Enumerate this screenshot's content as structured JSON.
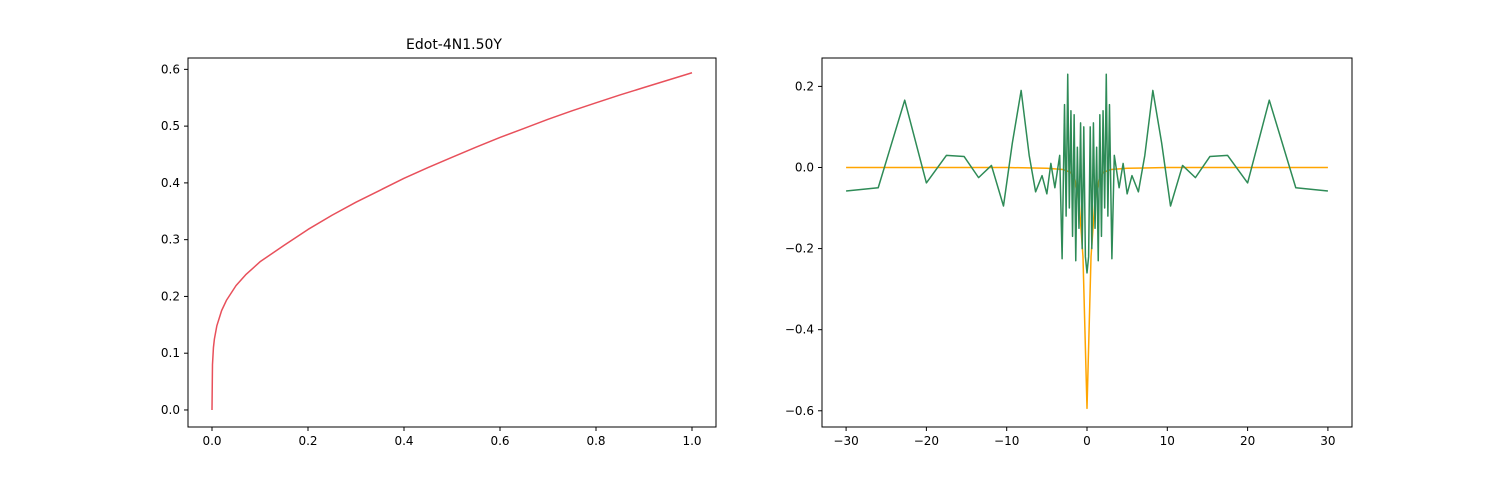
{
  "figure": {
    "background": "#ffffff"
  },
  "chart_data": [
    {
      "type": "line",
      "title": "Edot-4N1.50Y",
      "xlabel": "",
      "ylabel": "",
      "xlim": [
        -0.05,
        1.05
      ],
      "ylim": [
        -0.03,
        0.62
      ],
      "xticks": [
        0.0,
        0.2,
        0.4,
        0.6,
        0.8,
        1.0
      ],
      "xtick_labels": [
        "0.0",
        "0.2",
        "0.4",
        "0.6",
        "0.8",
        "1.0"
      ],
      "yticks": [
        0.0,
        0.1,
        0.2,
        0.3,
        0.4,
        0.5,
        0.6
      ],
      "ytick_labels": [
        "0.0",
        "0.1",
        "0.2",
        "0.3",
        "0.4",
        "0.5",
        "0.6"
      ],
      "grid": false,
      "series": [
        {
          "color": "#e8505b",
          "x": [
            0.0,
            0.001,
            0.003,
            0.005,
            0.01,
            0.02,
            0.03,
            0.05,
            0.07,
            0.1,
            0.15,
            0.2,
            0.25,
            0.3,
            0.35,
            0.4,
            0.45,
            0.5,
            0.55,
            0.6,
            0.65,
            0.7,
            0.75,
            0.8,
            0.85,
            0.9,
            0.95,
            1.0
          ],
          "y": [
            0.0,
            0.08,
            0.11,
            0.125,
            0.148,
            0.175,
            0.193,
            0.219,
            0.238,
            0.261,
            0.29,
            0.318,
            0.343,
            0.366,
            0.387,
            0.408,
            0.427,
            0.445,
            0.463,
            0.48,
            0.496,
            0.512,
            0.527,
            0.541,
            0.555,
            0.568,
            0.581,
            0.594
          ]
        }
      ]
    },
    {
      "type": "line",
      "title": "",
      "xlabel": "",
      "ylabel": "",
      "xlim": [
        -33,
        33
      ],
      "ylim": [
        -0.64,
        0.27
      ],
      "xticks": [
        -30,
        -20,
        -10,
        0,
        10,
        20,
        30
      ],
      "xtick_labels": [
        "−30",
        "−20",
        "−10",
        "0",
        "10",
        "20",
        "30"
      ],
      "yticks": [
        -0.6,
        -0.4,
        -0.2,
        0.0,
        0.2
      ],
      "ytick_labels": [
        "−0.6",
        "−0.4",
        "−0.2",
        "0.0",
        "0.2"
      ],
      "grid": false,
      "series": [
        {
          "color": "#ffa500",
          "x": [
            -30,
            -20,
            -10,
            -5,
            -3,
            -2,
            -1.5,
            -1,
            -0.5,
            0,
            0.5,
            1,
            1.5,
            2,
            3,
            5,
            10,
            20,
            30
          ],
          "y": [
            0.0,
            0.0,
            0.0,
            -0.002,
            -0.005,
            -0.012,
            -0.03,
            -0.08,
            -0.22,
            -0.594,
            -0.22,
            -0.08,
            -0.03,
            -0.012,
            -0.005,
            -0.002,
            0.0,
            0.0,
            0.0
          ]
        },
        {
          "color": "#2e8b57",
          "x": [
            -30,
            -26,
            -22.7,
            -20,
            -17.5,
            -15.3,
            -13.5,
            -11.9,
            -10.4,
            -9.3,
            -8.2,
            -7.2,
            -6.4,
            -5.6,
            -5.0,
            -4.5,
            -4.0,
            -3.7,
            -3.4,
            -3.1,
            -2.8,
            -2.6,
            -2.4,
            -2.2,
            -2.0,
            -1.8,
            -1.6,
            -1.4,
            -1.2,
            -1.0,
            -0.8,
            -0.6,
            -0.4,
            -0.2,
            0.0,
            0.2,
            0.4,
            0.6,
            0.8,
            1.0,
            1.2,
            1.4,
            1.6,
            1.8,
            2.0,
            2.2,
            2.4,
            2.6,
            2.8,
            3.1,
            3.4,
            3.7,
            4.0,
            4.5,
            5.0,
            5.6,
            6.4,
            7.2,
            8.2,
            9.3,
            10.4,
            11.9,
            13.5,
            15.3,
            17.5,
            20,
            22.7,
            26,
            30
          ],
          "y": [
            -0.058,
            -0.05,
            0.166,
            -0.038,
            0.03,
            0.027,
            -0.025,
            0.005,
            -0.095,
            0.06,
            0.19,
            0.03,
            -0.06,
            -0.02,
            -0.065,
            0.01,
            -0.05,
            -0.01,
            0.03,
            -0.225,
            0.155,
            -0.12,
            0.23,
            -0.1,
            0.14,
            -0.17,
            0.13,
            -0.23,
            0.05,
            -0.15,
            0.11,
            -0.2,
            0.1,
            -0.22,
            -0.26,
            -0.22,
            0.1,
            -0.2,
            0.11,
            -0.15,
            0.05,
            -0.23,
            0.13,
            -0.17,
            0.14,
            -0.1,
            0.23,
            -0.12,
            0.155,
            -0.225,
            0.03,
            -0.01,
            -0.05,
            0.01,
            -0.065,
            -0.02,
            -0.06,
            0.03,
            0.19,
            0.06,
            -0.095,
            0.005,
            -0.025,
            0.027,
            0.03,
            -0.038,
            0.166,
            -0.05,
            -0.058
          ]
        }
      ]
    }
  ]
}
